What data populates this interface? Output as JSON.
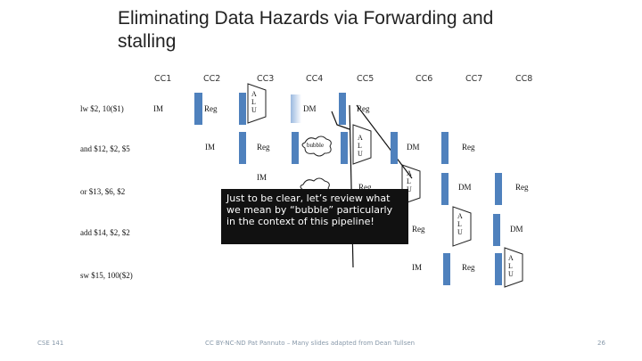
{
  "slide": {
    "title": "Eliminating Data Hazards via Forwarding and stalling",
    "clock_cycles": [
      "CC1",
      "CC2",
      "CC3",
      "CC4",
      "CC5",
      "CC6",
      "CC7",
      "CC8"
    ],
    "instructions": [
      "lw $2, 10($1)",
      "and $12, $2, $5",
      "or $13, $6, $2",
      "add $14, $2, $2",
      "sw $15, 100($2)"
    ],
    "stage_labels": {
      "im": "IM",
      "reg": "Reg",
      "alu": "ALU",
      "dm": "DM",
      "bubble": "bubble"
    },
    "callout": "Just to be clear, let’s review what we mean by “bubble” particularly in the context of this pipeline!",
    "footer_left": "CSE 141",
    "footer_center": "CC BY-NC-ND Pat Pannuto – Many slides adapted from Dean Tullsen",
    "page_number": "26"
  },
  "colors": {
    "stage_blue": "#4f81bd",
    "callout_bg": "#111111"
  }
}
